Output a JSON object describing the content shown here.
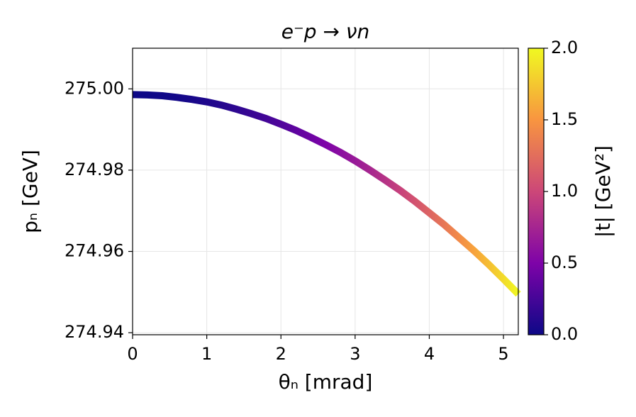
{
  "chart_data": {
    "type": "scatter",
    "title": "e⁻p → νn",
    "x_label": "θₙ [mrad]",
    "y_label": "pₙ [GeV]",
    "colorbar_label": "|t| [GeV²]",
    "colormap": "plasma",
    "x": [
      0,
      0.2,
      0.4,
      0.6,
      0.8,
      1.0,
      1.2,
      1.4,
      1.6,
      1.8,
      2.0,
      2.2,
      2.4,
      2.6,
      2.8,
      3.0,
      3.2,
      3.4,
      3.6,
      3.8,
      4.0,
      4.2,
      4.4,
      4.6,
      4.8,
      5.0,
      5.2
    ],
    "values": [
      274.9986,
      274.9985,
      274.9983,
      274.9979,
      274.9974,
      274.9968,
      274.996,
      274.995,
      274.9939,
      274.9927,
      274.9913,
      274.9898,
      274.9881,
      274.9863,
      274.9844,
      274.9823,
      274.98,
      274.9776,
      274.9751,
      274.9724,
      274.9695,
      274.9666,
      274.9634,
      274.9602,
      274.9568,
      274.9532,
      274.9495
    ],
    "color_values": [
      0,
      0.003,
      0.012,
      0.027,
      0.047,
      0.074,
      0.107,
      0.145,
      0.189,
      0.24,
      0.296,
      0.358,
      0.426,
      0.5,
      0.58,
      0.666,
      0.758,
      0.855,
      0.959,
      1.069,
      1.184,
      1.305,
      1.433,
      1.566,
      1.705,
      1.85,
      2.0
    ],
    "xlim": [
      0,
      5.2
    ],
    "ylim": [
      274.9395,
      275.01
    ],
    "clim": [
      0,
      2
    ],
    "xticks": [
      0,
      1,
      2,
      3,
      4,
      5
    ],
    "yticks": [
      {
        "value": 275,
        "label": "275.00"
      },
      274.98,
      274.96,
      274.94
    ],
    "cticks": [
      {
        "value": 0,
        "label": "0.0"
      },
      0.5,
      {
        "value": 1,
        "label": "1.0"
      },
      1.5,
      {
        "value": 2,
        "label": "2.0"
      }
    ],
    "grid": true
  }
}
